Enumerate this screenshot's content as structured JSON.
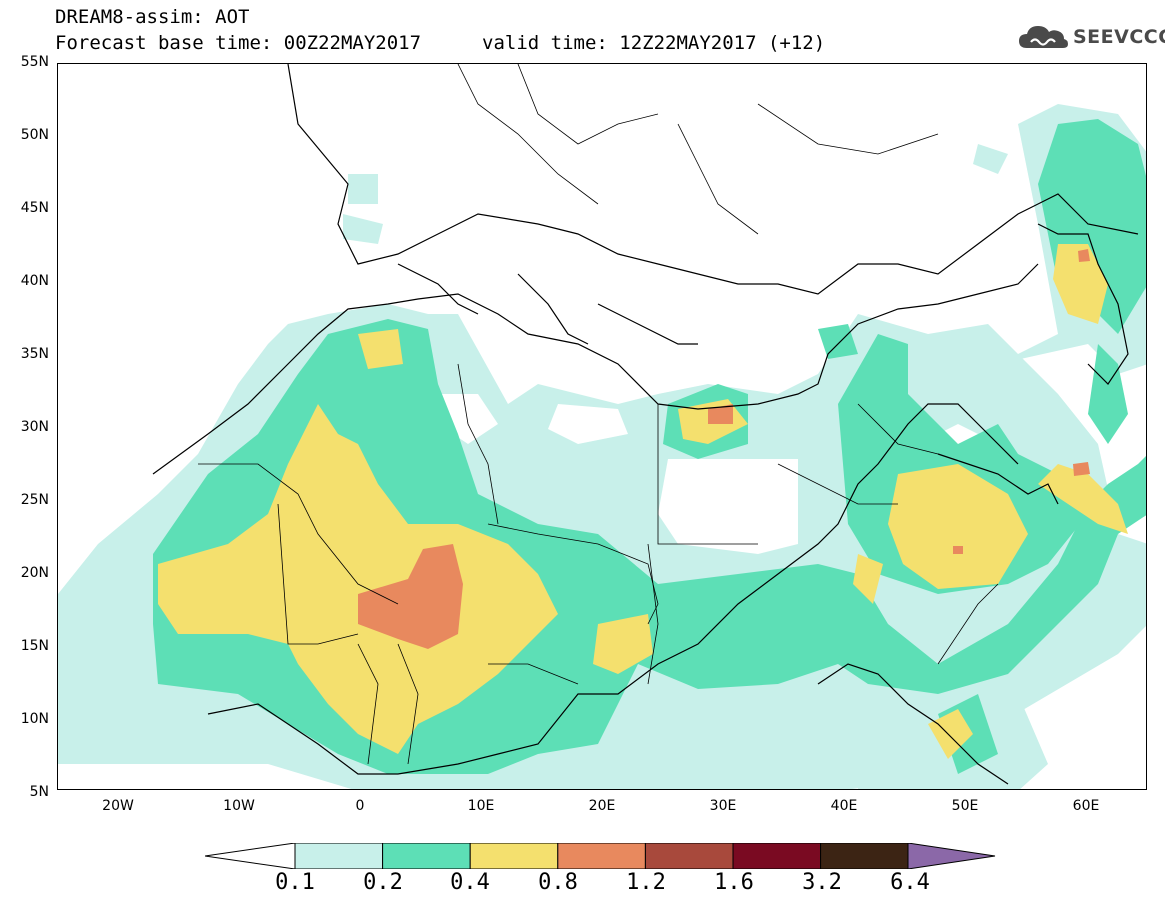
{
  "header": {
    "line1": "DREAM8-assim: AOT",
    "line2": "Forecast base time: 00Z22MAY2017",
    "valid": "valid time: 12Z22MAY2017 (+12)"
  },
  "logo": {
    "text": "SEEVCCC",
    "icon": "cloud-icon"
  },
  "axes": {
    "lat_labels": [
      "55N",
      "50N",
      "45N",
      "40N",
      "35N",
      "30N",
      "25N",
      "20N",
      "15N",
      "10N",
      "5N"
    ],
    "lon_labels": [
      "20W",
      "10W",
      "0",
      "10E",
      "20E",
      "30E",
      "40E",
      "50E",
      "60E"
    ],
    "lat_range": [
      5,
      55
    ],
    "lon_range": [
      -25,
      65
    ]
  },
  "colorbar": {
    "levels": [
      "0.1",
      "0.2",
      "0.4",
      "0.8",
      "1.2",
      "1.6",
      "3.2",
      "6.4"
    ],
    "colors": [
      "#c8f0ea",
      "#5ddfb6",
      "#f4e06e",
      "#e8895e",
      "#a8493c",
      "#7a0a22",
      "#3c2414",
      "#8b68a8"
    ],
    "under_color": "#ffffff",
    "over_color": "#8b68a8"
  }
}
